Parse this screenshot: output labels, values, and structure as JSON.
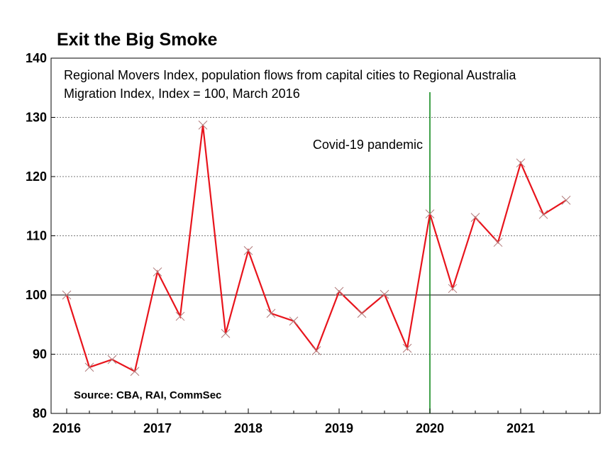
{
  "chart_data": {
    "type": "line",
    "title": "Exit the Big Smoke",
    "subtitle_lines": [
      "Regional Movers Index, population flows from capital cities to Regional Australia",
      "Migration Index, Index = 100, March 2016"
    ],
    "source": "Source: CBA, RAI,  CommSec",
    "annotation": {
      "text": "Covid-19 pandemic",
      "x": 2020.0
    },
    "reference_line": 100,
    "ylim": [
      80,
      140
    ],
    "yticks": [
      80,
      90,
      100,
      110,
      120,
      130,
      140
    ],
    "xlim": [
      2016,
      2021.9
    ],
    "xticks": [
      {
        "label": "2016",
        "value": 2016
      },
      {
        "label": "2017",
        "value": 2017
      },
      {
        "label": "2018",
        "value": 2018
      },
      {
        "label": "2019",
        "value": 2019
      },
      {
        "label": "2020",
        "value": 2020
      },
      {
        "label": "2021",
        "value": 2021
      }
    ],
    "grid": "horizontal-dotted",
    "series": [
      {
        "color": "#e8141c",
        "marker": "x",
        "x": [
          2016.0,
          2016.25,
          2016.5,
          2016.75,
          2017.0,
          2017.25,
          2017.5,
          2017.75,
          2018.0,
          2018.25,
          2018.5,
          2018.75,
          2019.0,
          2019.25,
          2019.5,
          2019.75,
          2020.0,
          2020.25,
          2020.5,
          2020.75,
          2021.0,
          2021.25,
          2021.5
        ],
        "y": [
          100,
          87.8,
          89.1,
          87.1,
          103.9,
          96.4,
          128.7,
          93.5,
          107.5,
          96.9,
          95.6,
          90.6,
          100.6,
          96.9,
          100.1,
          91.0,
          113.7,
          101.1,
          113.1,
          108.9,
          122.3,
          113.6,
          116.0
        ]
      }
    ]
  }
}
